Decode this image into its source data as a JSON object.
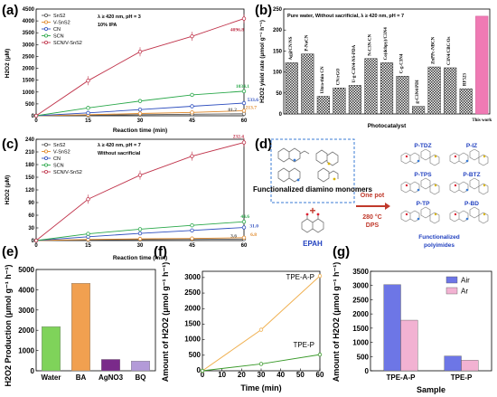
{
  "panels": {
    "a": {
      "label": "(a)"
    },
    "b": {
      "label": "(b)"
    },
    "c": {
      "label": "(c)"
    },
    "d": {
      "label": "(d)"
    },
    "e": {
      "label": "(e)"
    },
    "f": {
      "label": "(f)"
    },
    "g": {
      "label": "(g)"
    }
  },
  "colors": {
    "SnS2": "#555555",
    "V_SnS2": "#e0892b",
    "CN": "#2f4fbf",
    "SCN": "#2aa84a",
    "SCNV": "#c0344b",
    "water": "#7fd35a",
    "BA": "#f1a050",
    "AgNO3": "#7a2a8a",
    "BQ": "#b39ad8",
    "TPE_A_P": "#f0b050",
    "TPE_P": "#3a9a2a",
    "Air": "#6d76e6",
    "Ar": "#f2b2d2",
    "this_work": "#f07ab4"
  },
  "chart_data": [
    {
      "panel": "a",
      "type": "line",
      "xlabel": "Reaction time (min)",
      "ylabel": "H2O2 (μM)",
      "xticks": [
        0,
        15,
        30,
        45,
        60
      ],
      "yticks": [
        0,
        500,
        1000,
        1500,
        2000,
        2500,
        3000,
        3500,
        4000,
        4500
      ],
      "xlim": [
        0,
        60
      ],
      "ylim": [
        0,
        4500
      ],
      "annotation": [
        "λ ≥ 420 nm, pH = 3",
        "10% IPA"
      ],
      "x": [
        0,
        15,
        30,
        45,
        60
      ],
      "series": [
        {
          "name": "SnS2",
          "key": "SnS2",
          "values": [
            0,
            22,
            45,
            65,
            81.2
          ]
        },
        {
          "name": "V-SnS2",
          "key": "V_SnS2",
          "values": [
            0,
            45,
            95,
            140,
            213.7
          ]
        },
        {
          "name": "CN",
          "key": "CN",
          "values": [
            0,
            120,
            260,
            400,
            533.6
          ]
        },
        {
          "name": "SCN",
          "key": "SCN",
          "values": [
            0,
            330,
            620,
            880,
            1034.1
          ]
        },
        {
          "name": "SCN/V-SnS2",
          "key": "SCNV",
          "values": [
            0,
            1480,
            2700,
            3350,
            4096.8
          ]
        }
      ],
      "data_labels": [
        "81.2",
        "213.7",
        "533.6",
        "1034.1",
        "4096.8"
      ]
    },
    {
      "panel": "b",
      "type": "bar",
      "xlabel": "Photocatalyst",
      "ylabel": "H2O2 yield rate (μmol g⁻¹ h⁻¹)",
      "annotation": "Pure water, Without sacrificial, λ ≥ 420 nm, pH = 7",
      "ylim": [
        0,
        250
      ],
      "yticks": [
        0,
        50,
        100,
        150,
        200,
        250
      ],
      "categories": [
        "Ag@CN/NS",
        "P-NaCN",
        "Ultra-thin CN",
        "CN/rGO",
        "U-g-C3N4-NS-PDA",
        "N-C3N-CN",
        "Co(dcbpy)/C3N4",
        "C-g-C3N4",
        "g-C3N4/PDI",
        "ZnPPc-NBCN",
        "C3N4/CBC/Os",
        "RF523",
        "This work"
      ],
      "values": [
        122,
        143,
        42,
        62,
        68,
        132,
        122,
        90,
        18,
        112,
        110,
        60,
        233
      ]
    },
    {
      "panel": "c",
      "type": "line",
      "xlabel": "Reaction time (min)",
      "ylabel": "H2O2 (μM)",
      "xticks": [
        0,
        15,
        30,
        45,
        60
      ],
      "yticks": [
        0,
        30,
        60,
        90,
        120,
        150,
        180,
        210,
        240
      ],
      "xlim": [
        0,
        60
      ],
      "ylim": [
        0,
        240
      ],
      "annotation": [
        "λ ≥ 420 nm, pH = 7",
        "Without sacrificial"
      ],
      "x": [
        0,
        15,
        30,
        45,
        60
      ],
      "series": [
        {
          "name": "SnS2",
          "key": "SnS2",
          "values": [
            0,
            1.5,
            2.3,
            2.9,
            3.6
          ]
        },
        {
          "name": "V-SnS2",
          "key": "V_SnS2",
          "values": [
            0,
            2.5,
            4,
            5,
            6.8
          ]
        },
        {
          "name": "CN",
          "key": "CN",
          "values": [
            0,
            9,
            17,
            24,
            31.0
          ]
        },
        {
          "name": "SCN",
          "key": "SCN",
          "values": [
            0,
            16,
            27,
            36,
            44.6
          ]
        },
        {
          "name": "SCN/V-SnS2",
          "key": "SCNV",
          "values": [
            0,
            98,
            155,
            200,
            232.4
          ]
        }
      ],
      "data_labels": [
        "3.6",
        "6.8",
        "31.0",
        "44.6",
        "232.4"
      ]
    },
    {
      "panel": "e",
      "type": "bar",
      "ylabel": "H2O2 Production (μmol g⁻¹ h⁻¹)",
      "ylim": [
        0,
        5000
      ],
      "yticks": [
        0,
        500,
        1000,
        1500,
        2000,
        2500,
        3000,
        3500,
        4000,
        4500,
        5000
      ],
      "categories": [
        "Water",
        "BA",
        "AgNO3",
        "BQ"
      ],
      "values": [
        2180,
        4320,
        560,
        480
      ]
    },
    {
      "panel": "f",
      "type": "line",
      "xlabel": "Time (min)",
      "ylabel": "Amount of H2O2 (μmol g⁻¹ h⁻¹)",
      "xticks": [
        0,
        10,
        20,
        30,
        40,
        50,
        60
      ],
      "yticks": [
        0,
        500,
        1000,
        1500,
        2000,
        2500,
        3000
      ],
      "xlim": [
        0,
        60
      ],
      "ylim": [
        0,
        3200
      ],
      "x": [
        0,
        30,
        60
      ],
      "series": [
        {
          "name": "TPE-A-P",
          "key": "TPE_A_P",
          "values": [
            0,
            1320,
            3050
          ]
        },
        {
          "name": "TPE-P",
          "key": "TPE_P",
          "values": [
            0,
            220,
            520
          ]
        }
      ]
    },
    {
      "panel": "g",
      "type": "bar",
      "xlabel": "Sample",
      "ylabel": "Amount of H2O2 (μmol g⁻¹ h⁻¹)",
      "ylim": [
        0,
        3500
      ],
      "yticks": [
        0,
        500,
        1000,
        1500,
        2000,
        2500,
        3000,
        3500
      ],
      "categories": [
        "TPE-A-P",
        "TPE-P"
      ],
      "series": [
        {
          "name": "Air",
          "key": "Air",
          "values": [
            3030,
            520
          ]
        },
        {
          "name": "Ar",
          "key": "Ar",
          "values": [
            1780,
            370
          ]
        }
      ]
    }
  ],
  "scheme": {
    "box_caption": "Functionalized diamino monomers",
    "plus": "+",
    "reagent": "EPAH",
    "arrow_text": [
      "One pot",
      "280 °C",
      "DPS"
    ],
    "products": [
      "P-TDZ",
      "P-IZ",
      "P-TPS",
      "P-BTZ",
      "P-TP",
      "P-BD"
    ],
    "product_caption": [
      "Functionalized",
      "polyimides"
    ]
  }
}
